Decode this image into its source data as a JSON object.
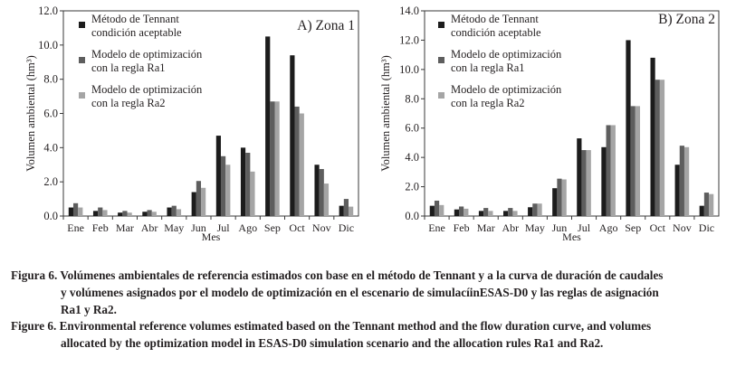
{
  "chart_data": [
    {
      "type": "bar",
      "title": "A) Zona 1",
      "xlabel": "Mes",
      "ylabel": "Volumen ambiental (hm³)",
      "ylim": [
        0,
        12
      ],
      "yticks": [
        "0.0",
        "2.0",
        "4.0",
        "6.0",
        "8.0",
        "10.0",
        "12.0"
      ],
      "categories": [
        "Ene",
        "Feb",
        "Mar",
        "Abr",
        "May",
        "Jun",
        "Jul",
        "Ago",
        "Sep",
        "Oct",
        "Nov",
        "Dic"
      ],
      "legend_position": "top-left",
      "grid": false,
      "series": [
        {
          "name": "Método de Tennant condición aceptable",
          "color": "#1c1c1c",
          "values": [
            0.5,
            0.3,
            0.2,
            0.25,
            0.5,
            1.4,
            4.7,
            4.0,
            10.5,
            9.4,
            3.0,
            0.6
          ]
        },
        {
          "name": "Modelo de optimización con la regla Ra1",
          "color": "#5e5e5e",
          "values": [
            0.75,
            0.5,
            0.3,
            0.35,
            0.6,
            2.05,
            3.5,
            3.7,
            6.7,
            6.4,
            2.75,
            1.0
          ]
        },
        {
          "name": "Modelo de optimización con la regla Ra2",
          "color": "#a5a5a5",
          "values": [
            0.5,
            0.35,
            0.2,
            0.25,
            0.4,
            1.65,
            3.0,
            2.6,
            6.7,
            6.0,
            1.9,
            0.55
          ]
        }
      ]
    },
    {
      "type": "bar",
      "title": "B) Zona 2",
      "xlabel": "Mes",
      "ylabel": "Volumen ambiental (hm³)",
      "ylim": [
        0,
        14
      ],
      "yticks": [
        "0.0",
        "2.0",
        "4.0",
        "6.0",
        "8.0",
        "10.0",
        "12.0",
        "14.0"
      ],
      "categories": [
        "Ene",
        "Feb",
        "Mar",
        "Abr",
        "May",
        "Jun",
        "Jul",
        "Ago",
        "Sep",
        "Oct",
        "Nov",
        "Dic"
      ],
      "legend_position": "top-left",
      "grid": false,
      "series": [
        {
          "name": "Método de Tennant condición aceptable",
          "color": "#1c1c1c",
          "values": [
            0.7,
            0.45,
            0.35,
            0.35,
            0.6,
            1.9,
            5.3,
            4.7,
            12.0,
            10.8,
            3.5,
            0.7
          ]
        },
        {
          "name": "Modelo de optimización con la regla Ra1",
          "color": "#5e5e5e",
          "values": [
            1.05,
            0.65,
            0.55,
            0.55,
            0.85,
            2.55,
            4.5,
            6.2,
            7.5,
            9.3,
            4.8,
            1.6
          ]
        },
        {
          "name": "Modelo de optimización con la regla Ra2",
          "color": "#a5a5a5",
          "values": [
            0.75,
            0.5,
            0.35,
            0.35,
            0.85,
            2.5,
            4.5,
            6.2,
            7.5,
            9.3,
            4.7,
            1.5
          ]
        }
      ]
    }
  ],
  "caption": {
    "es": {
      "lines": [
        "Figura 6. Volúmenes ambientales de referencia estimados con base en el método de Tennant y a la curva de duración de caudales",
        "y volúmenes asignados por el modelo de optimización en el escenario de simulacíinESAS-D0 y las reglas de asignación",
        "Ra1 y Ra2."
      ]
    },
    "en": {
      "lines": [
        "Figure 6. Environmental reference volumes estimated based on the Tennant method and the flow duration curve, and volumes",
        "allocated by the optimization model in ESAS-D0 simulation scenario and the allocation rules Ra1 and Ra2."
      ]
    }
  }
}
